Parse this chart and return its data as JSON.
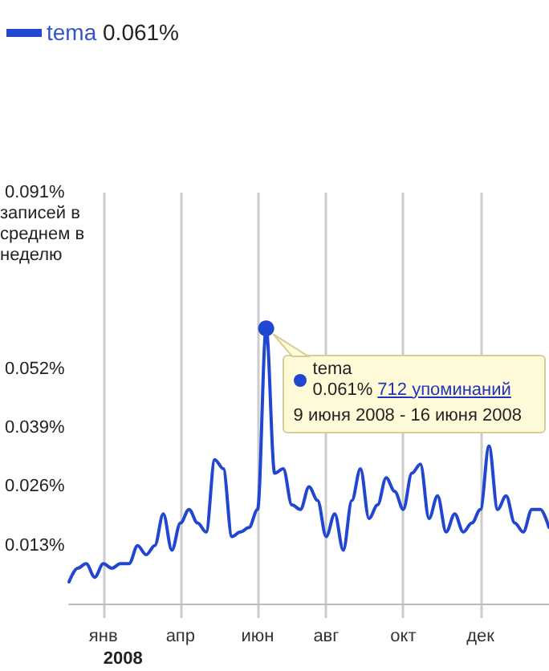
{
  "chart_data": {
    "type": "line",
    "categories": [
      null,
      null,
      null,
      null,
      "янв",
      null,
      null,
      null,
      null,
      null,
      null,
      null,
      null,
      "апр",
      null,
      null,
      null,
      null,
      null,
      null,
      null,
      null,
      "июн",
      null,
      null,
      null,
      null,
      null,
      null,
      null,
      "авг",
      null,
      null,
      null,
      null,
      null,
      null,
      null,
      null,
      "окт",
      null,
      null,
      null,
      null,
      null,
      null,
      null,
      null,
      "дек",
      null,
      null,
      null,
      null,
      null,
      null,
      null,
      null
    ],
    "series": [
      {
        "name": "tema",
        "color": "#2146d0",
        "values": [
          0.005,
          0.008,
          0.009,
          0.006,
          0.009,
          0.008,
          0.009,
          0.009,
          0.013,
          0.011,
          0.013,
          0.02,
          0.012,
          0.018,
          0.021,
          0.018,
          0.016,
          0.032,
          0.03,
          0.015,
          0.016,
          0.017,
          0.021,
          0.061,
          0.029,
          0.03,
          0.022,
          0.021,
          0.026,
          0.023,
          0.015,
          0.02,
          0.012,
          0.023,
          0.03,
          0.019,
          0.022,
          0.028,
          0.025,
          0.021,
          0.029,
          0.031,
          0.019,
          0.024,
          0.016,
          0.02,
          0.016,
          0.018,
          0.021,
          0.035,
          0.021,
          0.024,
          0.018,
          0.016,
          0.021,
          0.021,
          0.017
        ]
      }
    ],
    "ylabel": "записей в среднем в неделю",
    "ylim": [
      -0.003,
      0.091
    ],
    "yticks": [
      {
        "value": 0.013,
        "label": "0.013%"
      },
      {
        "value": 0.026,
        "label": "0.026%"
      },
      {
        "value": 0.039,
        "label": "0.039%"
      },
      {
        "value": 0.052,
        "label": "0.052%"
      },
      {
        "value": 0.091,
        "label": "0.091%"
      }
    ],
    "annotations": [
      "0.061%",
      "2008",
      "tema\n0.061% 712 упоминаний\n9 июня 2008 - 16 июня 2008"
    ],
    "grid": "x",
    "legend": "top left",
    "marker": "none",
    "line_style": "solid"
  }
}
